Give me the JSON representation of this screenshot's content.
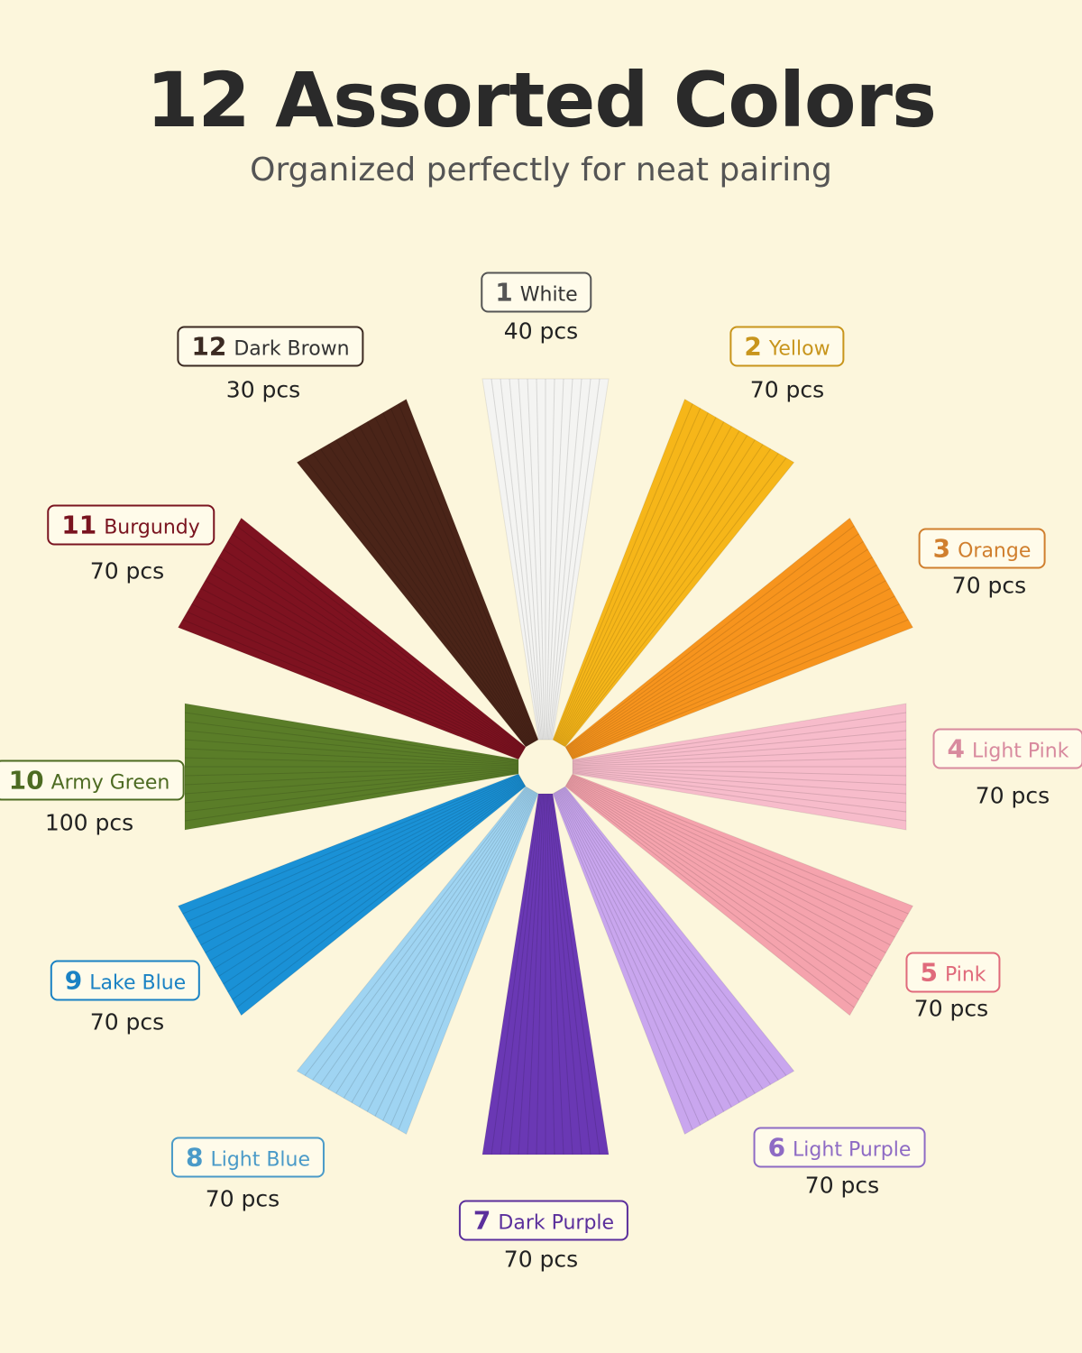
{
  "header": {
    "title": "12 Assorted Colors",
    "subtitle": "Organized perfectly for neat pairing"
  },
  "items": [
    {
      "number": "1",
      "name": "White",
      "count": "40 pcs"
    },
    {
      "number": "2",
      "name": "Yellow",
      "count": "70 pcs"
    },
    {
      "number": "3",
      "name": "Orange",
      "count": "70 pcs"
    },
    {
      "number": "4",
      "name": "Light Pink",
      "count": "70 pcs"
    },
    {
      "number": "5",
      "name": "Pink",
      "count": "70 pcs"
    },
    {
      "number": "6",
      "name": "Light Purple",
      "count": "70 pcs"
    },
    {
      "number": "7",
      "name": "Dark Purple",
      "count": "70 pcs"
    },
    {
      "number": "8",
      "name": "Light Blue",
      "count": "70 pcs"
    },
    {
      "number": "9",
      "name": "Lake Blue",
      "count": "70 pcs"
    },
    {
      "number": "10",
      "name": "Army Green",
      "count": "100 pcs"
    },
    {
      "number": "11",
      "name": "Burgundy",
      "count": "70 pcs"
    },
    {
      "number": "12",
      "name": "Dark Brown",
      "count": "30 pcs"
    }
  ]
}
